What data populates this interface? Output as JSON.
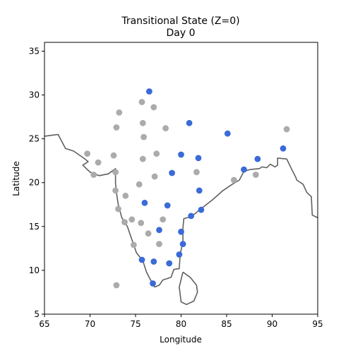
{
  "chart_data": {
    "type": "scatter",
    "title_line1": "Transitional State (Z=0)",
    "title_line2": "Day 0",
    "xlabel": "Longitude",
    "ylabel": "Latitude",
    "xlim": [
      65,
      95
    ],
    "ylim": [
      5,
      36
    ],
    "xticks": [
      65,
      70,
      75,
      80,
      85,
      90,
      95
    ],
    "yticks": [
      5,
      10,
      15,
      20,
      25,
      30,
      35
    ],
    "grid": false,
    "colors": {
      "active": "#3a6bd8",
      "inactive": "#ababab",
      "coastline": "#606060"
    },
    "series": [
      {
        "values": [
          [
            76.5,
            30.4
          ],
          [
            80.9,
            26.8
          ],
          [
            85.1,
            25.6
          ],
          [
            91.2,
            23.9
          ],
          [
            80.0,
            23.2
          ],
          [
            81.9,
            22.8
          ],
          [
            88.4,
            22.7
          ],
          [
            86.9,
            21.5
          ],
          [
            79.0,
            21.1
          ],
          [
            82.0,
            19.1
          ],
          [
            76.0,
            17.7
          ],
          [
            78.5,
            17.4
          ],
          [
            81.1,
            16.2
          ],
          [
            82.2,
            16.9
          ],
          [
            77.6,
            14.6
          ],
          [
            80.0,
            14.4
          ],
          [
            80.2,
            13.0
          ],
          [
            75.7,
            11.2
          ],
          [
            77.0,
            11.0
          ],
          [
            78.7,
            10.8
          ],
          [
            79.8,
            11.8
          ],
          [
            76.9,
            8.5
          ]
        ]
      },
      {
        "values": [
          [
            73.2,
            28.0
          ],
          [
            75.7,
            29.2
          ],
          [
            77.0,
            28.6
          ],
          [
            72.9,
            26.3
          ],
          [
            75.8,
            26.8
          ],
          [
            78.3,
            26.2
          ],
          [
            75.9,
            25.2
          ],
          [
            91.6,
            26.1
          ],
          [
            69.7,
            23.3
          ],
          [
            70.9,
            22.3
          ],
          [
            72.6,
            23.1
          ],
          [
            75.8,
            22.7
          ],
          [
            77.3,
            23.3
          ],
          [
            70.4,
            20.9
          ],
          [
            72.8,
            21.2
          ],
          [
            77.1,
            20.7
          ],
          [
            81.7,
            21.2
          ],
          [
            75.4,
            19.8
          ],
          [
            72.8,
            19.1
          ],
          [
            73.9,
            18.5
          ],
          [
            85.8,
            20.3
          ],
          [
            88.2,
            20.9
          ],
          [
            73.1,
            17.0
          ],
          [
            73.8,
            15.5
          ],
          [
            74.6,
            15.8
          ],
          [
            75.6,
            15.4
          ],
          [
            78.0,
            15.8
          ],
          [
            76.4,
            14.2
          ],
          [
            74.8,
            12.9
          ],
          [
            77.6,
            13.0
          ],
          [
            72.9,
            8.3
          ]
        ]
      }
    ],
    "coastline": [
      [
        [
          65.0,
          25.3
        ],
        [
          66.5,
          25.5
        ],
        [
          67.3,
          23.9
        ],
        [
          68.2,
          23.6
        ],
        [
          69.3,
          22.8
        ],
        [
          69.8,
          22.4
        ],
        [
          69.2,
          22.0
        ],
        [
          70.0,
          21.2
        ],
        [
          71.0,
          20.8
        ],
        [
          72.0,
          21.0
        ],
        [
          72.8,
          21.6
        ],
        [
          72.8,
          20.0
        ],
        [
          72.9,
          18.9
        ],
        [
          73.1,
          17.5
        ],
        [
          73.5,
          16.0
        ],
        [
          74.1,
          15.0
        ],
        [
          74.6,
          13.5
        ],
        [
          75.1,
          12.0
        ],
        [
          75.8,
          11.1
        ],
        [
          76.2,
          9.8
        ],
        [
          76.6,
          9.0
        ],
        [
          77.1,
          8.1
        ],
        [
          77.6,
          8.3
        ],
        [
          78.0,
          8.9
        ],
        [
          78.9,
          9.2
        ],
        [
          79.2,
          10.1
        ],
        [
          79.8,
          10.2
        ],
        [
          79.9,
          11.8
        ],
        [
          80.2,
          13.3
        ],
        [
          80.2,
          14.8
        ],
        [
          80.3,
          15.9
        ],
        [
          81.1,
          16.1
        ],
        [
          82.4,
          17.2
        ],
        [
          83.4,
          18.0
        ],
        [
          84.6,
          19.1
        ],
        [
          85.6,
          19.8
        ],
        [
          86.4,
          20.3
        ],
        [
          86.9,
          21.3
        ],
        [
          87.6,
          21.5
        ],
        [
          88.6,
          21.6
        ],
        [
          88.9,
          21.8
        ],
        [
          89.4,
          21.7
        ],
        [
          89.8,
          22.1
        ],
        [
          90.3,
          21.8
        ],
        [
          90.6,
          22.0
        ],
        [
          90.6,
          22.8
        ],
        [
          91.6,
          22.7
        ],
        [
          92.2,
          21.4
        ],
        [
          92.6,
          20.6
        ],
        [
          92.7,
          20.3
        ],
        [
          93.4,
          19.8
        ],
        [
          93.8,
          18.9
        ],
        [
          94.3,
          18.4
        ],
        [
          94.4,
          16.3
        ],
        [
          95.0,
          16.0
        ]
      ],
      [
        [
          80.2,
          9.8
        ],
        [
          81.0,
          9.2
        ],
        [
          81.7,
          8.3
        ],
        [
          81.8,
          7.5
        ],
        [
          81.4,
          6.5
        ],
        [
          80.6,
          6.1
        ],
        [
          80.0,
          6.4
        ],
        [
          79.8,
          8.1
        ],
        [
          80.2,
          9.8
        ]
      ]
    ]
  }
}
